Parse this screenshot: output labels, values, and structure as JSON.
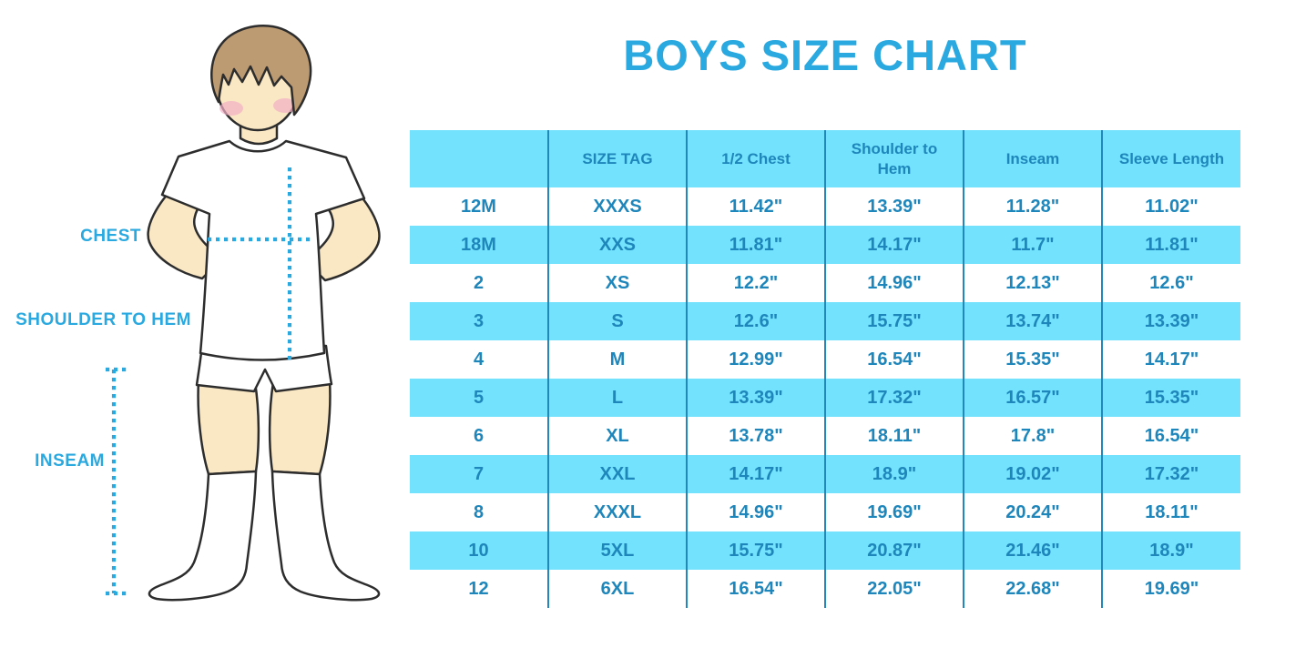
{
  "title": "BOYS SIZE CHART",
  "diagram": {
    "chest_label": "CHEST",
    "shoulder_to_hem_label": "SHOULDER TO HEM",
    "inseam_label": "INSEAM"
  },
  "chart_data": {
    "type": "table",
    "title": "BOYS SIZE CHART",
    "columns": [
      "",
      "SIZE TAG",
      "1/2 Chest",
      "Shoulder to Hem",
      "Inseam",
      "Sleeve Length"
    ],
    "rows": [
      [
        "12M",
        "XXXS",
        "11.42\"",
        "13.39\"",
        "11.28\"",
        "11.02\""
      ],
      [
        "18M",
        "XXS",
        "11.81\"",
        "14.17\"",
        "11.7\"",
        "11.81\""
      ],
      [
        "2",
        "XS",
        "12.2\"",
        "14.96\"",
        "12.13\"",
        "12.6\""
      ],
      [
        "3",
        "S",
        "12.6\"",
        "15.75\"",
        "13.74\"",
        "13.39\""
      ],
      [
        "4",
        "M",
        "12.99\"",
        "16.54\"",
        "15.35\"",
        "14.17\""
      ],
      [
        "5",
        "L",
        "13.39\"",
        "17.32\"",
        "16.57\"",
        "15.35\""
      ],
      [
        "6",
        "XL",
        "13.78\"",
        "18.11\"",
        "17.8\"",
        "16.54\""
      ],
      [
        "7",
        "XXL",
        "14.17\"",
        "18.9\"",
        "19.02\"",
        "17.32\""
      ],
      [
        "8",
        "XXXL",
        "14.96\"",
        "19.69\"",
        "20.24\"",
        "18.11\""
      ],
      [
        "10",
        "5XL",
        "15.75\"",
        "20.87\"",
        "21.46\"",
        "18.9\""
      ],
      [
        "12",
        "6XL",
        "16.54\"",
        "22.05\"",
        "22.68\"",
        "19.69\""
      ]
    ]
  },
  "colors": {
    "title_blue": "#29A9E0",
    "table_text_blue": "#1E86BB",
    "column_line_blue": "#2287BD",
    "row_cyan": "#73E2FC",
    "dotted_line_blue": "#29A9E0",
    "skin": "#FAE7C4",
    "hair_brown": "#BC9A72",
    "outline": "#2D2D2D",
    "blush_pink": "#F2AFC4"
  }
}
